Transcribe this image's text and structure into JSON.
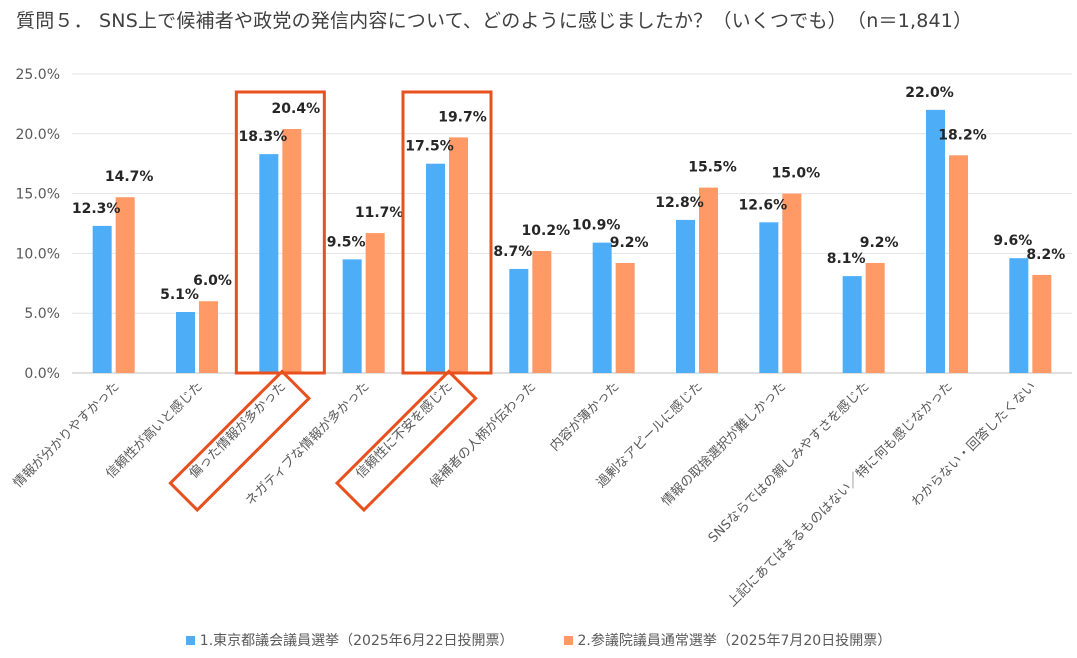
{
  "title": "質問５． SNS上で候補者や政党の発信内容について、どのように感じましたか？（いくつでも）　（n＝1,841）",
  "chart_data": {
    "type": "bar",
    "title": "質問５． SNS上で候補者や政党の発信内容について、どのように感じましたか？（いくつでも）　（n＝1,841）",
    "categories": [
      "情報が分かりやすかった",
      "信頼性が高いと感じた",
      "偏った情報が多かった",
      "ネガティブな情報が多かった",
      "信頼性に不安を感じた",
      "候補者の人柄が伝わった",
      "内容が薄かった",
      "過剰なアピールに感じた",
      "情報の取捨選択が難しかった",
      "SNSならではの親しみやすさを感じた",
      "上記にあてはまるものはない／特に何も感じなかった",
      "わからない・回答したくない"
    ],
    "series": [
      {
        "name": "1.東京都議会議員選挙（2025年6月22日投開票）",
        "color": "#4DAEF7",
        "values": [
          12.3,
          5.1,
          18.3,
          9.5,
          17.5,
          8.7,
          10.9,
          12.8,
          12.6,
          8.1,
          22.0,
          9.6
        ],
        "labels": [
          "12.3%",
          "5.1%",
          "18.3%",
          "9.5%",
          "17.5%",
          "8.7%",
          "10.9%",
          "12.8%",
          "12.6%",
          "8.1%",
          "22.0%",
          "9.6%"
        ]
      },
      {
        "name": "2.参議院議員通常選挙（2025年7月20日投開票）",
        "color": "#FF9966",
        "values": [
          14.7,
          6.0,
          20.4,
          11.7,
          19.7,
          10.2,
          9.2,
          15.5,
          15.0,
          9.2,
          18.2,
          8.2
        ],
        "labels": [
          "14.7%",
          "6.0%",
          "20.4%",
          "11.7%",
          "19.7%",
          "10.2%",
          "9.2%",
          "15.5%",
          "15.0%",
          "9.2%",
          "18.2%",
          "8.2%"
        ]
      }
    ],
    "ylim": [
      0,
      25
    ],
    "y_ticks": [
      "0.0%",
      "5.0%",
      "10.0%",
      "15.0%",
      "20.0%",
      "25.0%"
    ],
    "grid": true,
    "legend_position": "bottom",
    "highlighted_categories": [
      2,
      4
    ],
    "highlight_color": "#E8501E"
  }
}
